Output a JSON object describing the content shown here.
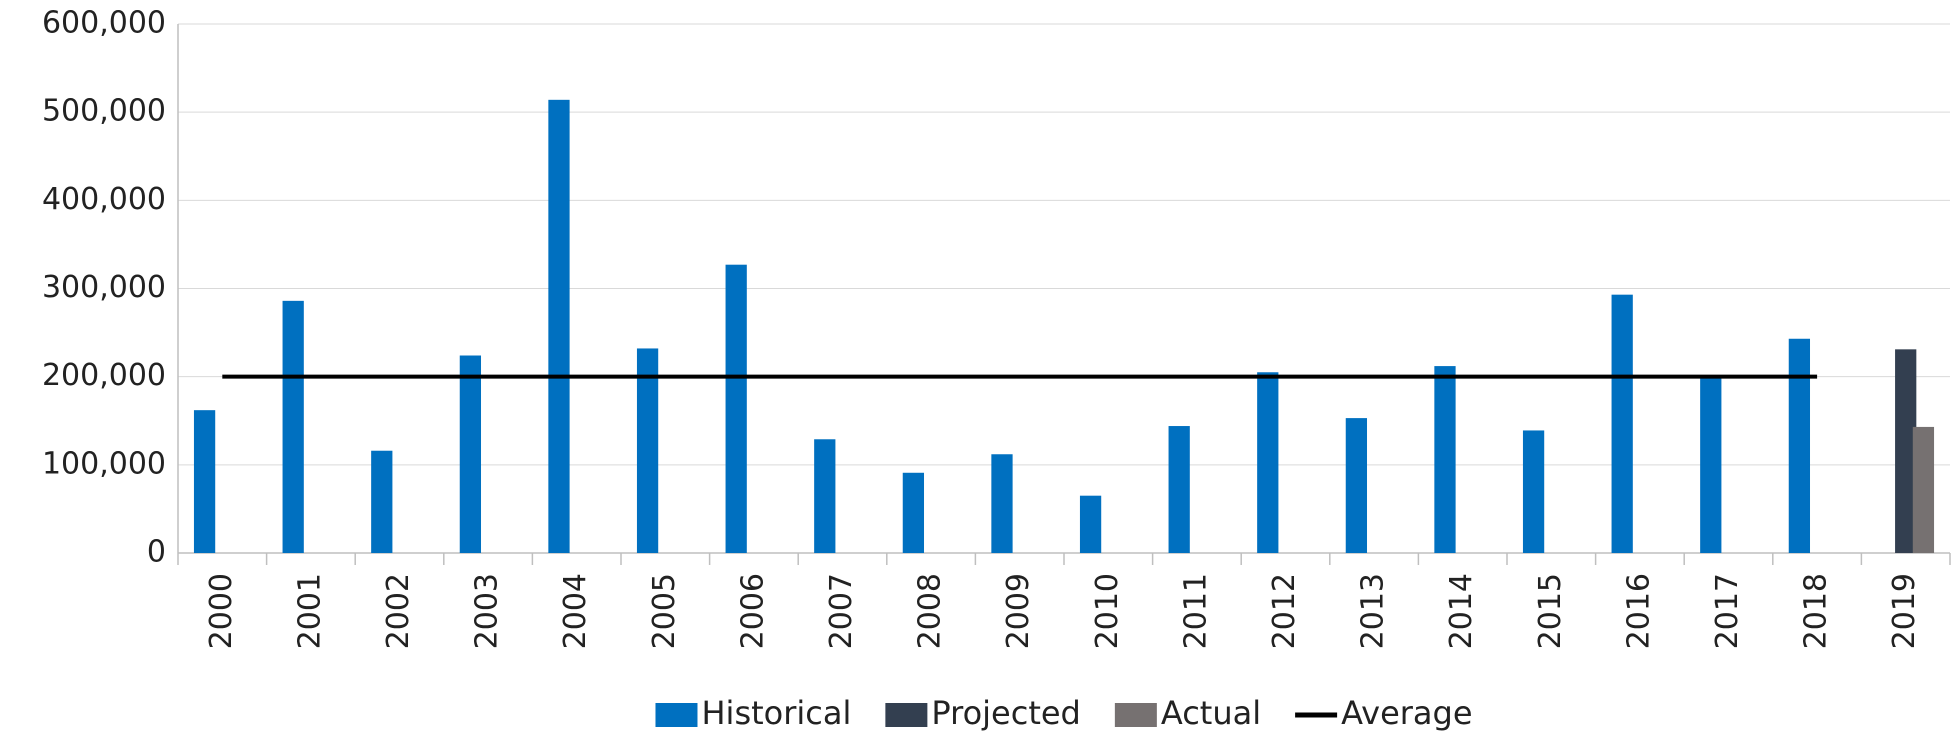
{
  "chart_data": {
    "type": "bar",
    "categories": [
      "2000",
      "2001",
      "2002",
      "2003",
      "2004",
      "2005",
      "2006",
      "2007",
      "2008",
      "2009",
      "2010",
      "2011",
      "2012",
      "2013",
      "2014",
      "2015",
      "2016",
      "2017",
      "2018",
      "2019"
    ],
    "series": [
      {
        "name": "Historical",
        "color": "#0070c0",
        "type": "bar",
        "values": [
          162000,
          286000,
          116000,
          224000,
          514000,
          232000,
          327000,
          129000,
          91000,
          112000,
          65000,
          144000,
          205000,
          153000,
          212000,
          139000,
          293000,
          201000,
          243000,
          null
        ]
      },
      {
        "name": "Projected",
        "color": "#333f50",
        "type": "bar",
        "values": [
          null,
          null,
          null,
          null,
          null,
          null,
          null,
          null,
          null,
          null,
          null,
          null,
          null,
          null,
          null,
          null,
          null,
          null,
          null,
          231000
        ]
      },
      {
        "name": "Actual",
        "color": "#767171",
        "type": "bar",
        "values": [
          null,
          null,
          null,
          null,
          null,
          null,
          null,
          null,
          null,
          null,
          null,
          null,
          null,
          null,
          null,
          null,
          null,
          null,
          null,
          143000
        ]
      },
      {
        "name": "Average",
        "color": "#000000",
        "type": "line",
        "values": [
          200000,
          200000,
          200000,
          200000,
          200000,
          200000,
          200000,
          200000,
          200000,
          200000,
          200000,
          200000,
          200000,
          200000,
          200000,
          200000,
          200000,
          200000,
          200000,
          null
        ]
      }
    ],
    "ylim": [
      0,
      600000
    ],
    "yticks": [
      0,
      {
        "value": 100000,
        "label": "100,000"
      },
      {
        "value": 200000,
        "label": "200,000"
      },
      {
        "value": 300000,
        "label": "300,000"
      },
      {
        "value": 400000,
        "label": "400,000"
      },
      {
        "value": 500000,
        "label": "500,000"
      },
      {
        "value": 600000,
        "label": "600,000"
      }
    ],
    "grid": true,
    "legend": "bottom"
  }
}
